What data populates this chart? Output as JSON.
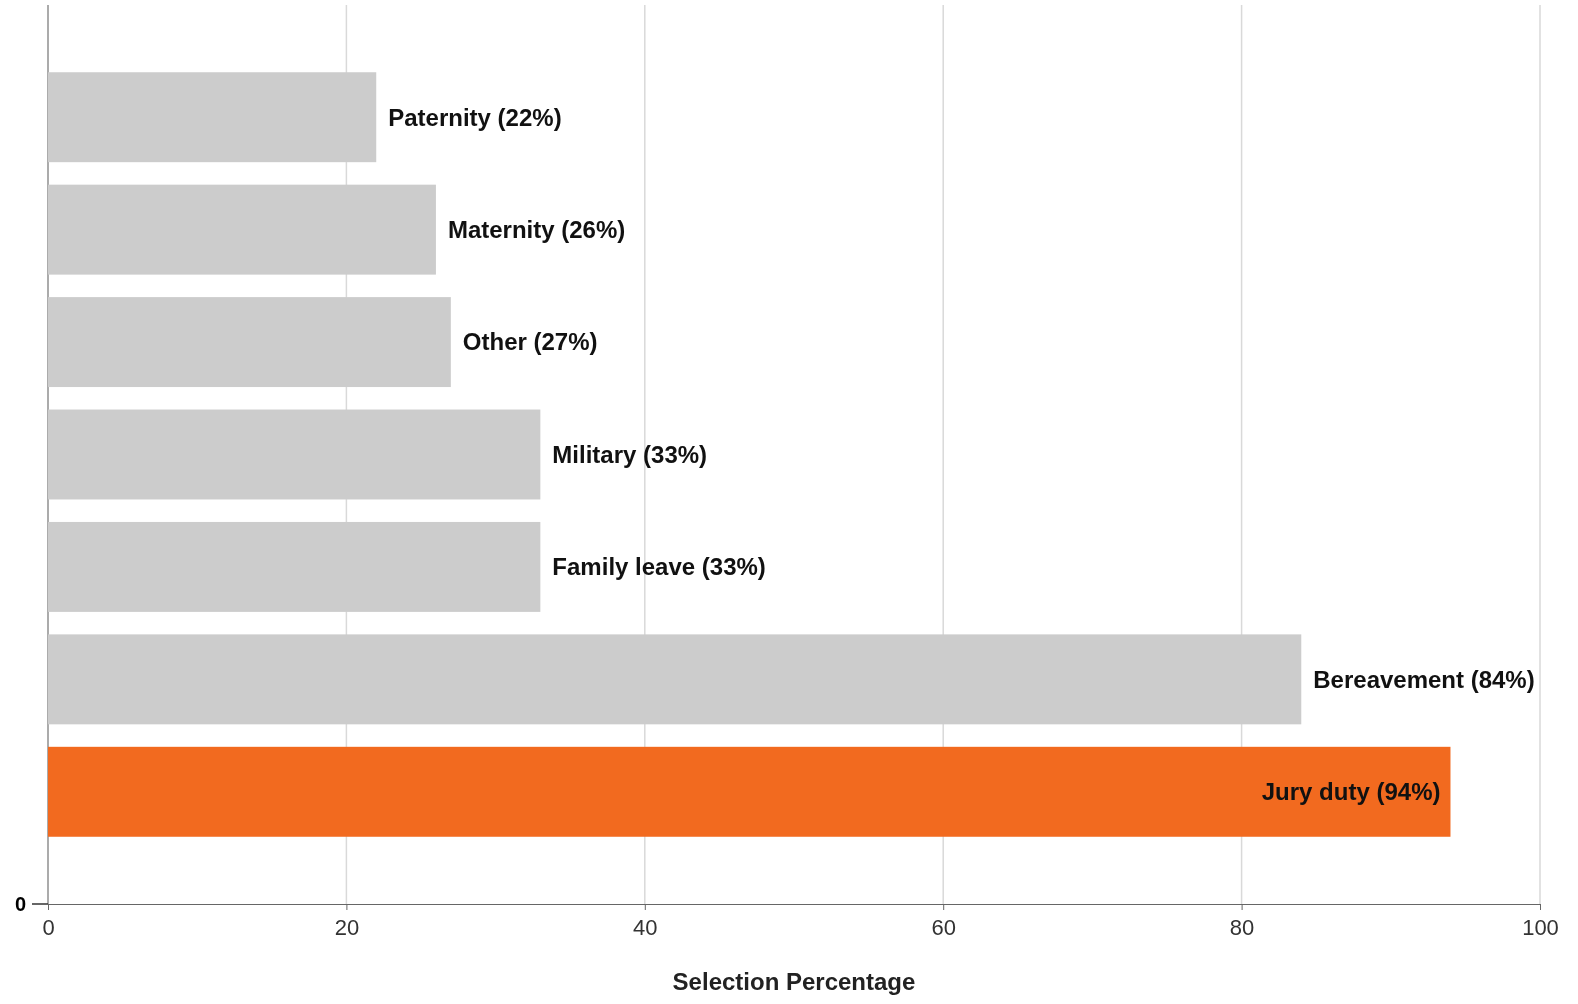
{
  "chart_data": {
    "type": "bar",
    "orientation": "horizontal",
    "xlabel": "Selection Percentage",
    "categories": [
      null,
      null,
      null,
      null,
      null,
      null,
      null
    ],
    "values": [
      22,
      26,
      27,
      33,
      33,
      84,
      94
    ],
    "colors": [
      "#cccccc",
      "#cccccc",
      "#cccccc",
      "#cccccc",
      "#cccccc",
      "#cccccc",
      "#f26a1f"
    ],
    "value_labels": [
      "Paternity (22%)",
      "Maternity (26%)",
      "Other (27%)",
      "Military (33%)",
      "Family leave (33%)",
      "Bereavement (84%)",
      "Jury duty (94%)"
    ],
    "xlim": [
      0,
      100
    ],
    "xticks": [
      0,
      20,
      40,
      60,
      80,
      100
    ],
    "grid": "x",
    "annotations": [
      "0"
    ]
  }
}
